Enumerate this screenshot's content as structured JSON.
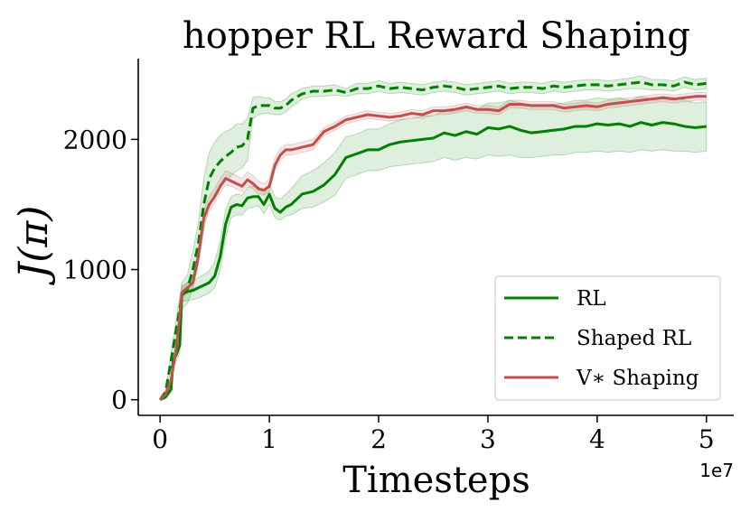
{
  "chart_data": {
    "type": "line",
    "title": "hopper RL Reward Shaping",
    "xlabel": "Timesteps",
    "ylabel": "J(π)",
    "x_offset_label": "1e7",
    "xlim": [
      -0.2,
      5.25
    ],
    "ylim": [
      -120,
      2620
    ],
    "xticks": [
      0,
      1,
      2,
      3,
      4,
      5
    ],
    "yticks": [
      0,
      1000,
      2000
    ],
    "legend_position": "lower-right",
    "grid": false,
    "series": [
      {
        "name": "RL",
        "color": "#008000",
        "dash": "solid",
        "band": true,
        "x": [
          0,
          0.05,
          0.1,
          0.12,
          0.15,
          0.18,
          0.2,
          0.22,
          0.25,
          0.3,
          0.35,
          0.4,
          0.45,
          0.5,
          0.55,
          0.6,
          0.65,
          0.7,
          0.75,
          0.8,
          0.85,
          0.9,
          0.95,
          1.0,
          1.05,
          1.1,
          1.15,
          1.2,
          1.3,
          1.4,
          1.5,
          1.6,
          1.7,
          1.8,
          1.9,
          2.0,
          2.1,
          2.2,
          2.3,
          2.4,
          2.5,
          2.6,
          2.7,
          2.8,
          2.9,
          3.0,
          3.1,
          3.2,
          3.3,
          3.4,
          3.5,
          3.6,
          3.7,
          3.8,
          3.9,
          4.0,
          4.1,
          4.2,
          4.3,
          4.4,
          4.5,
          4.6,
          4.7,
          4.8,
          4.9,
          5.0
        ],
        "values": [
          0,
          20,
          80,
          300,
          350,
          420,
          820,
          820,
          830,
          840,
          860,
          880,
          900,
          950,
          1100,
          1350,
          1480,
          1500,
          1490,
          1550,
          1560,
          1560,
          1500,
          1580,
          1470,
          1440,
          1480,
          1500,
          1580,
          1600,
          1650,
          1730,
          1860,
          1890,
          1920,
          1920,
          1960,
          1980,
          1990,
          2000,
          2010,
          2050,
          2030,
          2060,
          2040,
          2090,
          2080,
          2100,
          2070,
          2050,
          2060,
          2070,
          2080,
          2100,
          2100,
          2120,
          2110,
          2120,
          2100,
          2130,
          2110,
          2130,
          2120,
          2100,
          2090,
          2100
        ],
        "lower": [
          0,
          10,
          60,
          260,
          300,
          360,
          760,
          760,
          760,
          770,
          780,
          800,
          820,
          860,
          1000,
          1250,
          1400,
          1420,
          1420,
          1470,
          1480,
          1490,
          1430,
          1500,
          1400,
          1380,
          1410,
          1420,
          1470,
          1480,
          1520,
          1570,
          1700,
          1730,
          1760,
          1760,
          1790,
          1800,
          1810,
          1820,
          1830,
          1860,
          1840,
          1860,
          1850,
          1880,
          1870,
          1880,
          1860,
          1860,
          1870,
          1880,
          1880,
          1900,
          1900,
          1910,
          1900,
          1910,
          1900,
          1920,
          1910,
          1920,
          1910,
          1910,
          1900,
          1910
        ],
        "upper": [
          0,
          30,
          100,
          340,
          400,
          480,
          880,
          880,
          900,
          910,
          940,
          960,
          990,
          1060,
          1220,
          1460,
          1560,
          1580,
          1570,
          1630,
          1640,
          1640,
          1580,
          1660,
          1560,
          1540,
          1580,
          1620,
          1720,
          1760,
          1820,
          1900,
          2020,
          2040,
          2080,
          2080,
          2120,
          2150,
          2160,
          2180,
          2180,
          2220,
          2210,
          2240,
          2230,
          2280,
          2280,
          2300,
          2280,
          2250,
          2260,
          2270,
          2280,
          2300,
          2300,
          2320,
          2310,
          2320,
          2300,
          2330,
          2310,
          2330,
          2320,
          2300,
          2280,
          2290
        ]
      },
      {
        "name": "Shaped RL",
        "color": "#008000",
        "dash": "dashed",
        "band": true,
        "x": [
          0,
          0.05,
          0.1,
          0.15,
          0.2,
          0.25,
          0.3,
          0.35,
          0.4,
          0.45,
          0.5,
          0.55,
          0.6,
          0.65,
          0.7,
          0.75,
          0.8,
          0.85,
          0.9,
          0.95,
          1.0,
          1.05,
          1.1,
          1.15,
          1.2,
          1.3,
          1.4,
          1.5,
          1.6,
          1.7,
          1.8,
          1.9,
          2.0,
          2.1,
          2.2,
          2.3,
          2.4,
          2.5,
          2.6,
          2.7,
          2.8,
          2.9,
          3.0,
          3.1,
          3.2,
          3.3,
          3.4,
          3.5,
          3.6,
          3.7,
          3.8,
          3.9,
          4.0,
          4.1,
          4.2,
          4.3,
          4.4,
          4.5,
          4.6,
          4.7,
          4.8,
          4.9,
          5.0
        ],
        "values": [
          0,
          60,
          300,
          550,
          800,
          850,
          1000,
          1200,
          1500,
          1700,
          1780,
          1830,
          1870,
          1900,
          1940,
          1950,
          2000,
          2240,
          2260,
          2260,
          2260,
          2240,
          2240,
          2260,
          2300,
          2350,
          2370,
          2370,
          2380,
          2360,
          2390,
          2390,
          2410,
          2390,
          2400,
          2390,
          2380,
          2400,
          2410,
          2400,
          2380,
          2390,
          2400,
          2410,
          2390,
          2400,
          2400,
          2390,
          2410,
          2400,
          2410,
          2420,
          2420,
          2410,
          2420,
          2430,
          2440,
          2420,
          2420,
          2410,
          2440,
          2420,
          2430
        ],
        "lower": [
          0,
          40,
          240,
          460,
          700,
          740,
          860,
          1040,
          1300,
          1500,
          1580,
          1630,
          1680,
          1720,
          1760,
          1780,
          1840,
          2160,
          2190,
          2200,
          2200,
          2190,
          2190,
          2210,
          2250,
          2310,
          2330,
          2330,
          2340,
          2330,
          2350,
          2350,
          2370,
          2350,
          2360,
          2350,
          2340,
          2360,
          2370,
          2360,
          2340,
          2350,
          2360,
          2370,
          2350,
          2360,
          2360,
          2350,
          2370,
          2360,
          2370,
          2380,
          2380,
          2370,
          2380,
          2390,
          2390,
          2380,
          2380,
          2370,
          2400,
          2380,
          2390
        ],
        "upper": [
          0,
          80,
          360,
          640,
          900,
          960,
          1140,
          1360,
          1700,
          1900,
          1980,
          2030,
          2060,
          2080,
          2120,
          2120,
          2160,
          2320,
          2330,
          2320,
          2320,
          2290,
          2290,
          2310,
          2350,
          2390,
          2410,
          2410,
          2420,
          2390,
          2430,
          2430,
          2450,
          2430,
          2440,
          2430,
          2420,
          2440,
          2450,
          2440,
          2420,
          2430,
          2440,
          2450,
          2430,
          2440,
          2440,
          2430,
          2450,
          2440,
          2450,
          2460,
          2460,
          2450,
          2460,
          2470,
          2490,
          2460,
          2460,
          2450,
          2480,
          2460,
          2470
        ]
      },
      {
        "name": "V∗ Shaping",
        "color": "#c0504d",
        "dash": "solid",
        "band": true,
        "x": [
          0,
          0.05,
          0.1,
          0.15,
          0.2,
          0.22,
          0.25,
          0.3,
          0.35,
          0.4,
          0.45,
          0.5,
          0.55,
          0.6,
          0.65,
          0.7,
          0.75,
          0.8,
          0.85,
          0.9,
          0.95,
          1.0,
          1.05,
          1.1,
          1.15,
          1.2,
          1.3,
          1.4,
          1.5,
          1.6,
          1.7,
          1.8,
          1.9,
          2.0,
          2.1,
          2.2,
          2.3,
          2.4,
          2.5,
          2.6,
          2.7,
          2.8,
          2.9,
          3.0,
          3.1,
          3.2,
          3.3,
          3.4,
          3.5,
          3.6,
          3.7,
          3.8,
          3.9,
          4.0,
          4.1,
          4.2,
          4.3,
          4.4,
          4.5,
          4.6,
          4.7,
          4.8,
          4.9,
          5.0
        ],
        "values": [
          0,
          40,
          150,
          400,
          820,
          840,
          860,
          900,
          1100,
          1400,
          1500,
          1560,
          1640,
          1700,
          1680,
          1660,
          1640,
          1690,
          1660,
          1620,
          1610,
          1640,
          1800,
          1880,
          1920,
          1920,
          1940,
          1960,
          2060,
          2100,
          2150,
          2170,
          2190,
          2180,
          2170,
          2180,
          2200,
          2190,
          2220,
          2220,
          2230,
          2250,
          2230,
          2230,
          2220,
          2270,
          2270,
          2260,
          2260,
          2260,
          2240,
          2250,
          2260,
          2250,
          2270,
          2280,
          2290,
          2300,
          2310,
          2320,
          2310,
          2320,
          2330,
          2330
        ],
        "lower": [
          0,
          30,
          120,
          360,
          780,
          800,
          820,
          860,
          1050,
          1350,
          1450,
          1510,
          1590,
          1650,
          1640,
          1620,
          1600,
          1650,
          1620,
          1580,
          1570,
          1600,
          1760,
          1840,
          1880,
          1880,
          1900,
          1920,
          2030,
          2070,
          2120,
          2140,
          2160,
          2150,
          2140,
          2150,
          2170,
          2160,
          2190,
          2190,
          2200,
          2220,
          2200,
          2200,
          2190,
          2240,
          2240,
          2230,
          2230,
          2230,
          2210,
          2220,
          2230,
          2220,
          2240,
          2250,
          2260,
          2270,
          2280,
          2290,
          2280,
          2290,
          2300,
          2300
        ],
        "upper": [
          0,
          50,
          180,
          440,
          860,
          880,
          900,
          950,
          1160,
          1460,
          1560,
          1620,
          1700,
          1760,
          1740,
          1720,
          1700,
          1750,
          1720,
          1680,
          1660,
          1700,
          1860,
          1930,
          1960,
          1960,
          1980,
          2000,
          2090,
          2130,
          2180,
          2200,
          2220,
          2210,
          2200,
          2210,
          2230,
          2220,
          2250,
          2250,
          2260,
          2280,
          2260,
          2260,
          2250,
          2300,
          2300,
          2290,
          2290,
          2290,
          2270,
          2280,
          2290,
          2280,
          2300,
          2310,
          2320,
          2330,
          2340,
          2350,
          2340,
          2350,
          2360,
          2360
        ]
      }
    ]
  }
}
